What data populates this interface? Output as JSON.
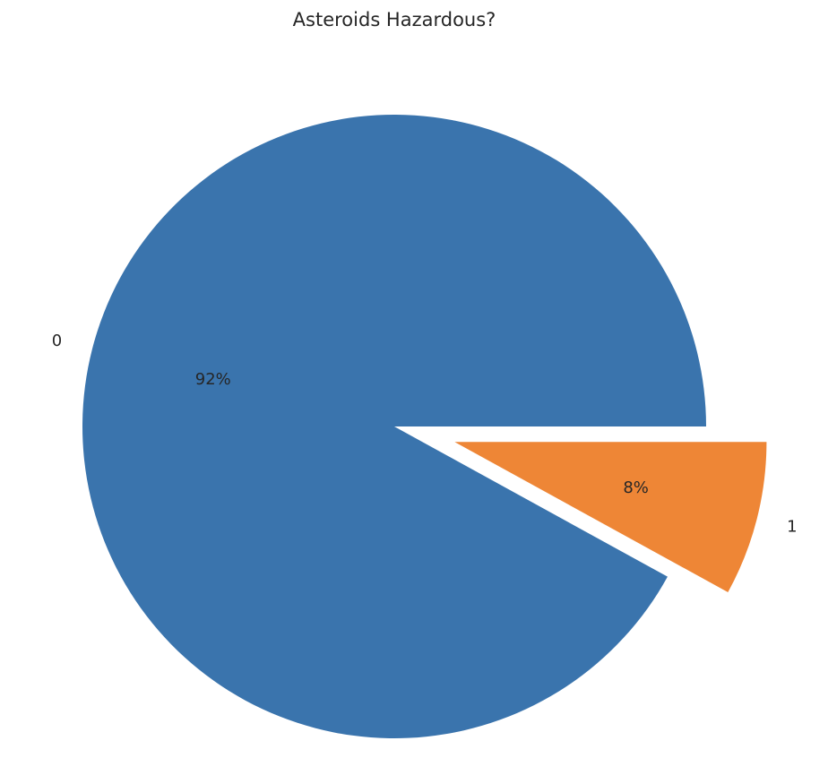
{
  "chart_data": {
    "type": "pie",
    "title": "Asteroids Hazardous?",
    "categories": [
      "0",
      "1"
    ],
    "values": [
      92,
      8
    ],
    "percent_labels": [
      "92%",
      "8%"
    ],
    "colors": [
      "#3a74ad",
      "#ee8636"
    ],
    "exploded": [
      false,
      true
    ],
    "legend": "none"
  }
}
